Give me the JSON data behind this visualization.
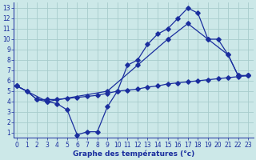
{
  "title": "Graphe des températures (°c)",
  "background_color": "#cce8e8",
  "grid_color": "#a8cccc",
  "line_color": "#1a2e9e",
  "x_ticks": [
    0,
    1,
    2,
    3,
    4,
    5,
    6,
    7,
    8,
    9,
    10,
    11,
    12,
    13,
    14,
    15,
    16,
    17,
    18,
    19,
    20,
    21,
    22,
    23
  ],
  "y_ticks": [
    1,
    2,
    3,
    4,
    5,
    6,
    7,
    8,
    9,
    10,
    11,
    12,
    13
  ],
  "ylim": [
    0.5,
    13.5
  ],
  "xlim": [
    -0.3,
    23.5
  ],
  "series1_x": [
    0,
    1,
    2,
    3,
    4,
    5,
    6,
    7,
    8,
    9,
    10,
    11,
    12,
    13,
    14,
    15,
    16,
    17,
    18,
    19,
    20,
    21,
    22,
    23
  ],
  "series1_y": [
    5.5,
    5.0,
    4.2,
    4.0,
    3.8,
    3.2,
    0.8,
    1.1,
    1.1,
    3.5,
    5.0,
    7.5,
    8.0,
    9.5,
    10.5,
    11.0,
    12.0,
    13.0,
    12.5,
    10.0,
    10.0,
    8.5,
    6.5,
    6.5
  ],
  "series2_x": [
    0,
    1,
    2,
    3,
    4,
    5,
    6,
    7,
    8,
    9,
    10,
    11,
    12,
    13,
    14,
    15,
    16,
    17,
    18,
    19,
    20,
    21,
    22,
    23
  ],
  "series2_y": [
    5.5,
    5.0,
    4.2,
    4.2,
    4.2,
    4.3,
    4.4,
    4.5,
    4.6,
    4.8,
    5.0,
    5.1,
    5.2,
    5.4,
    5.5,
    5.7,
    5.8,
    5.9,
    6.0,
    6.1,
    6.2,
    6.3,
    6.4,
    6.5
  ],
  "series3_x": [
    0,
    3,
    9,
    12,
    15,
    17,
    19,
    21,
    22,
    23
  ],
  "series3_y": [
    5.5,
    4.0,
    5.0,
    7.5,
    10.0,
    11.5,
    10.0,
    8.5,
    6.5,
    6.5
  ],
  "xlabel_fontsize": 6.5,
  "tick_fontsize": 5.5
}
